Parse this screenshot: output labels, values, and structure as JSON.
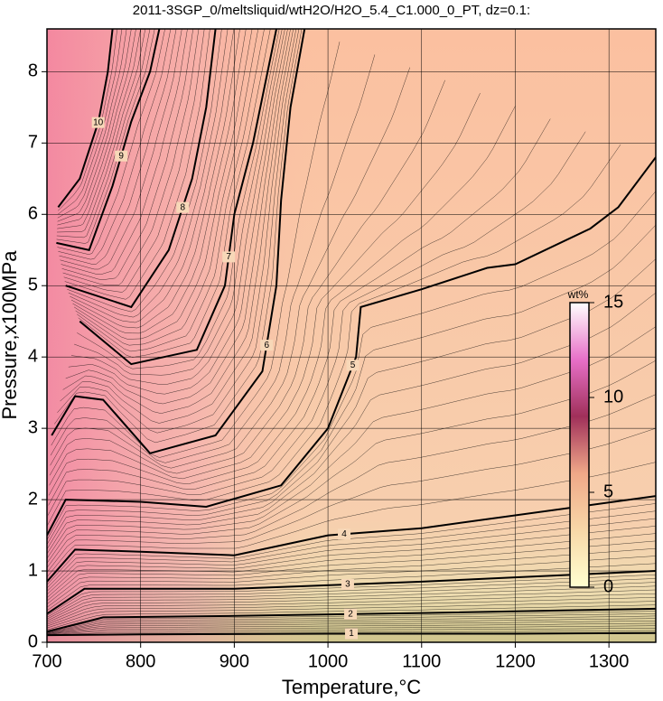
{
  "chart_data": {
    "type": "contour",
    "title": "2011-3SGP_0/meltsliquid/wtH2O/H2O_5.4_C1.000_0_PT, dz=0.1:",
    "x_label": "Temperature,°C",
    "y_label": "Pressure,x100MPa",
    "xlim": [
      700,
      1350
    ],
    "ylim": [
      0,
      8.6
    ],
    "xticks": [
      700,
      800,
      900,
      1000,
      1100,
      1200,
      1300
    ],
    "yticks": [
      0,
      1,
      2,
      3,
      4,
      5,
      6,
      7,
      8
    ],
    "grid": true,
    "colorbar": {
      "label": "wt%",
      "clim": [
        0,
        15
      ],
      "ticks": [
        0,
        5,
        10,
        15
      ]
    },
    "contours": [
      {
        "level": 1,
        "x": [
          700,
          800,
          1000,
          1200,
          1350
        ],
        "y": [
          0.1,
          0.11,
          0.12,
          0.12,
          0.13
        ]
      },
      {
        "level": 2,
        "x": [
          700,
          760,
          900,
          1100,
          1350
        ],
        "y": [
          0.15,
          0.35,
          0.37,
          0.41,
          0.47
        ]
      },
      {
        "level": 3,
        "x": [
          700,
          740,
          900,
          1100,
          1350
        ],
        "y": [
          0.4,
          0.75,
          0.75,
          0.85,
          1.0
        ]
      },
      {
        "level": 4,
        "x": [
          700,
          730,
          800,
          900,
          1000,
          1100,
          1350
        ],
        "y": [
          0.85,
          1.3,
          1.27,
          1.22,
          1.5,
          1.6,
          2.05
        ]
      },
      {
        "level": 5,
        "x": [
          700,
          720,
          800,
          870,
          950,
          1000,
          1030,
          1035,
          1100,
          1170,
          1200,
          1280,
          1310,
          1350
        ],
        "y": [
          1.5,
          2.0,
          1.97,
          1.9,
          2.2,
          3.0,
          4.0,
          4.7,
          4.95,
          5.25,
          5.3,
          5.8,
          6.1,
          6.8
        ]
      },
      {
        "level": 6,
        "x": [
          705,
          730,
          760,
          810,
          880,
          930,
          945,
          950,
          960,
          975
        ],
        "y": [
          2.9,
          3.45,
          3.4,
          2.65,
          2.9,
          3.8,
          5.0,
          6.2,
          7.5,
          8.6
        ]
      },
      {
        "level": 7,
        "x": [
          735,
          790,
          860,
          890,
          900,
          920,
          945
        ],
        "y": [
          4.5,
          3.9,
          4.1,
          5.0,
          6.0,
          7.0,
          8.6
        ]
      },
      {
        "level": 8,
        "x": [
          720,
          790,
          830,
          855,
          870,
          880
        ],
        "y": [
          5.0,
          4.7,
          5.5,
          6.5,
          7.5,
          8.6
        ]
      },
      {
        "level": 9,
        "x": [
          710,
          745,
          770,
          790,
          810,
          820
        ],
        "y": [
          5.6,
          5.5,
          6.4,
          7.3,
          8.0,
          8.6
        ]
      },
      {
        "level": 10,
        "x": [
          712,
          735,
          755,
          765,
          770
        ],
        "y": [
          6.1,
          6.5,
          7.3,
          8.0,
          8.6
        ]
      }
    ]
  }
}
